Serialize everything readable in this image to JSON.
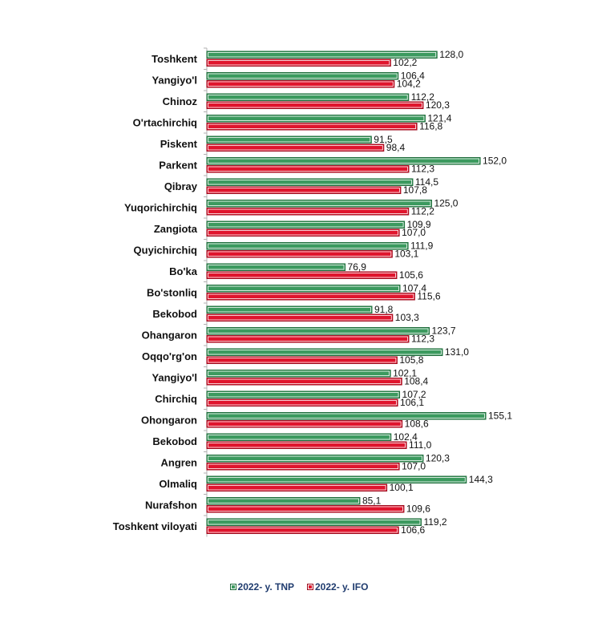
{
  "chart_data": {
    "type": "bar",
    "orientation": "horizontal",
    "title": "",
    "xlabel": "",
    "ylabel": "",
    "xlim": [
      0,
      160
    ],
    "grid": false,
    "legend_position": "bottom",
    "categories": [
      "Toshkent",
      "Yangiyo'l",
      "Chinoz",
      "O'rtachirchiq",
      "Piskent",
      "Parkent",
      "Qibray",
      "Yuqorichirchiq",
      "Zangiota",
      "Quyichirchiq",
      "Bo'ka",
      "Bo'stonliq",
      "Bekobod",
      "Ohangaron",
      "Oqqo'rg'on",
      "Yangiyo'l",
      "Chirchiq",
      "Ohongaron",
      "Bekobod",
      "Angren",
      "Olmaliq",
      "Nurafshon",
      "Toshkent viloyati"
    ],
    "series": [
      {
        "name": "2022- y. TNP",
        "color": "#3c9a5f",
        "values": [
          128.0,
          106.4,
          112.2,
          121.4,
          91.5,
          152.0,
          114.5,
          125.0,
          109.9,
          111.9,
          76.9,
          107.4,
          91.8,
          123.7,
          131.0,
          102.1,
          107.2,
          155.1,
          102.4,
          120.3,
          144.3,
          85.1,
          119.2
        ],
        "labels": [
          "128,0",
          "106,4",
          "112,2",
          "121,4",
          "91,5",
          "152,0",
          "114,5",
          "125,0",
          "109,9",
          "111,9",
          "76,9",
          "107,4",
          "91,8",
          "123,7",
          "131,0",
          "102,1",
          "107,2",
          "155,1",
          "102,4",
          "120,3",
          "144,3",
          "85,1",
          "119,2"
        ]
      },
      {
        "name": "2022- y. IFO",
        "color": "#e0152d",
        "values": [
          102.2,
          104.2,
          120.3,
          116.8,
          98.4,
          112.3,
          107.8,
          112.2,
          107.0,
          103.1,
          105.6,
          115.6,
          103.3,
          112.3,
          105.8,
          108.4,
          106.1,
          108.6,
          111.0,
          107.0,
          100.1,
          109.6,
          106.6
        ],
        "labels": [
          "102,2",
          "104,2",
          "120,3",
          "116,8",
          "98,4",
          "112,3",
          "107,8",
          "112,2",
          "107,0",
          "103,1",
          "105,6",
          "115,6",
          "103,3",
          "112,3",
          "105,8",
          "108,4",
          "106,1",
          "108,6",
          "111,0",
          "107,0",
          "100,1",
          "109,6",
          "106,6"
        ]
      }
    ]
  }
}
